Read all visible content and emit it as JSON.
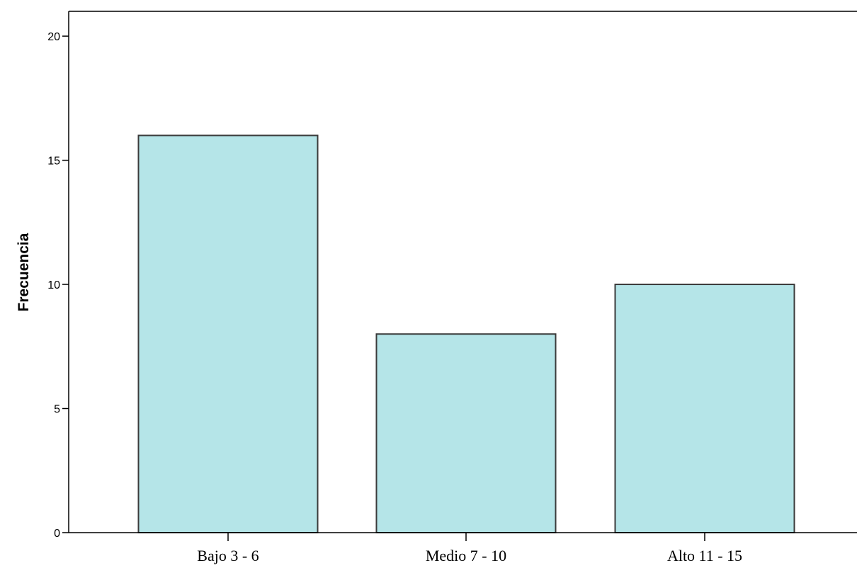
{
  "chart_data": {
    "type": "bar",
    "categories": [
      "Bajo 3 - 6",
      "Medio 7 - 10",
      "Alto 11 - 15"
    ],
    "values": [
      16,
      8,
      10
    ],
    "title": "",
    "xlabel": "",
    "ylabel": "Frecuencia",
    "ylim": [
      0,
      21
    ],
    "yticks": [
      0,
      5,
      10,
      15,
      20
    ],
    "grid": false,
    "colors": {
      "bar_fill": "#b5e5e8",
      "bar_stroke": "#3a3a3a",
      "axis": "#000000"
    }
  }
}
